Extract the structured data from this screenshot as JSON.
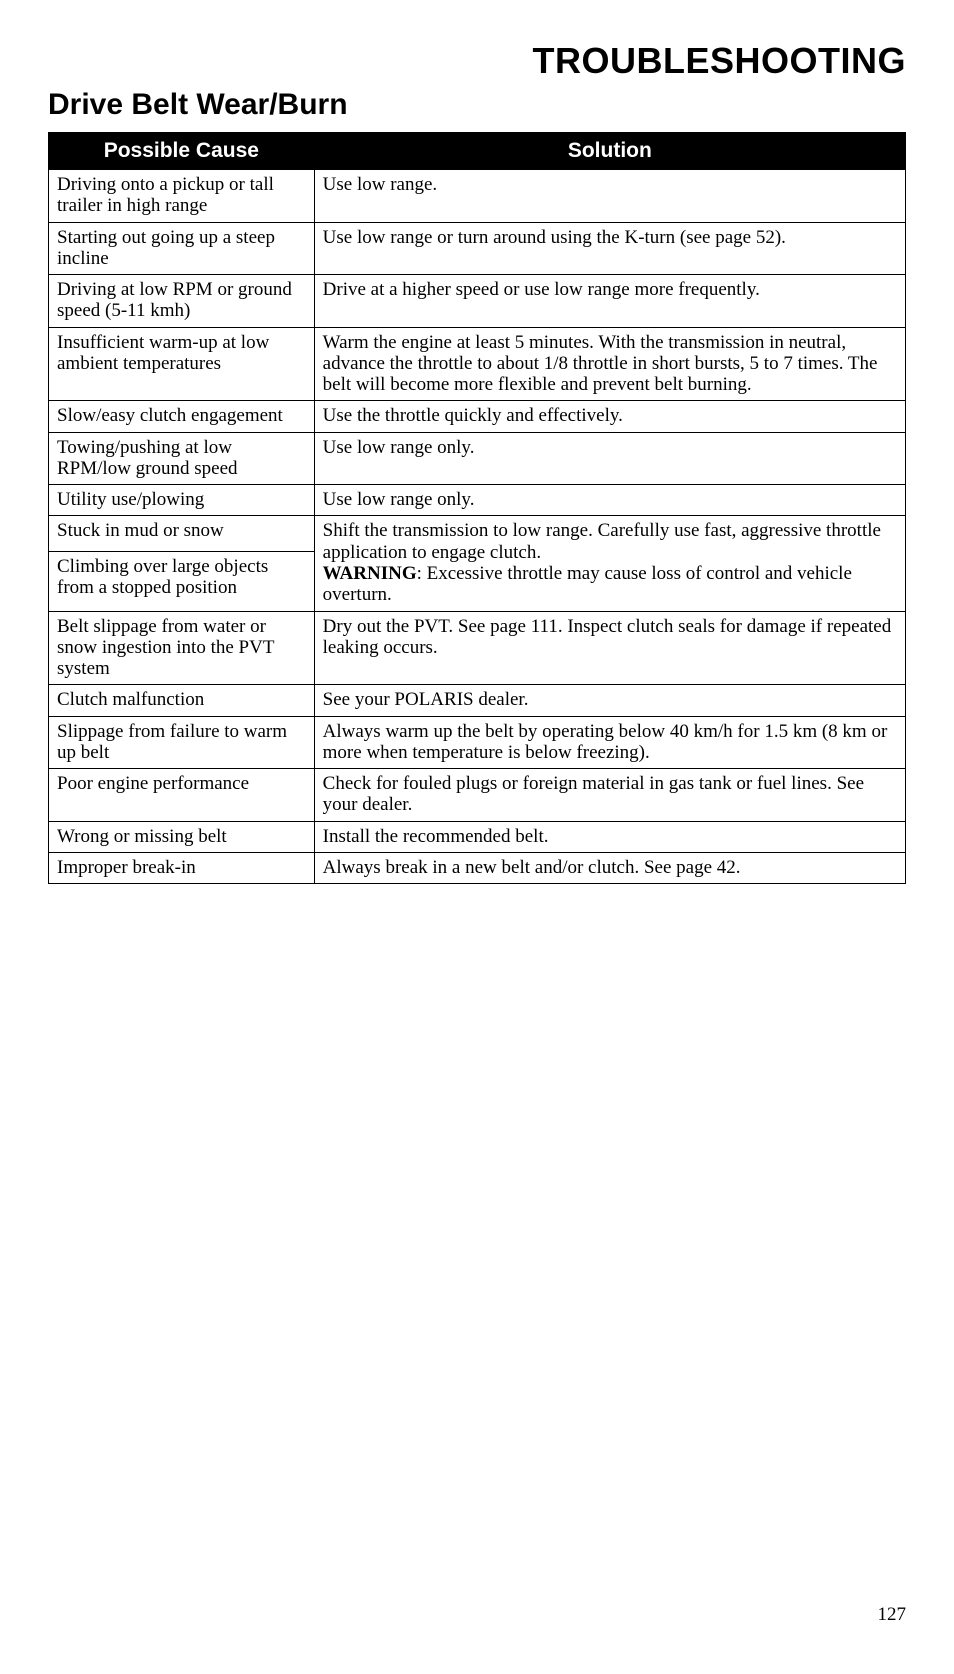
{
  "page": {
    "main_heading": "TROUBLESHOOTING",
    "sub_heading": "Drive Belt Wear/Burn",
    "page_number": "127"
  },
  "table": {
    "headers": {
      "cause": "Possible Cause",
      "solution": "Solution"
    },
    "rows": [
      {
        "cause": "Driving onto a pickup or tall trailer in high range",
        "solution": "Use low range.",
        "rowspan": 1
      },
      {
        "cause": "Starting out going up a steep incline",
        "solution": "Use low range or turn around using the K-turn (see page 52).",
        "rowspan": 1
      },
      {
        "cause": "Driving at low RPM or ground speed (5-11 kmh)",
        "solution": "Drive at a higher speed or use low range more frequently.",
        "rowspan": 1
      },
      {
        "cause": "Insufficient warm-up at low ambient tempera­tures",
        "solution": "Warm the engine at least 5 minutes. With the transmission in neutral, advance the throttle to about 1/8 throttle in short bursts, 5 to 7 times. The belt will become more flex­ible and prevent belt burning.",
        "rowspan": 1
      },
      {
        "cause": "Slow/easy clutch engage­ment",
        "solution": "Use the throttle quickly and effectively.",
        "rowspan": 1
      },
      {
        "cause": "Towing/pushing at low RPM/low ground speed",
        "solution": "Use low range only.",
        "rowspan": 1
      },
      {
        "cause": "Utility use/plowing",
        "solution": "Use low range only.",
        "rowspan": 1
      },
      {
        "cause": "Stuck in mud or snow",
        "solution_pre": "Shift the transmission to low range. Carefully use fast, aggressive throttle application to engage clutch.",
        "solution_warn_label": "WARNING",
        "solution_warn_text": ": Excessive throttle may cause loss of control and vehicle overturn.",
        "rowspan": 2
      },
      {
        "cause": "Climbing over large objects from a stopped position",
        "rowspan": 0
      },
      {
        "cause": "Belt slippage from water or snow ingestion into the PVT system",
        "solution": "Dry out the PVT. See page 111. Inspect clutch seals for damage if repeated leaking occurs.",
        "rowspan": 1
      },
      {
        "cause": "Clutch malfunction",
        "solution": "See your POLARIS dealer.",
        "rowspan": 1
      },
      {
        "cause": "Slippage from failure to warm up belt",
        "solution": "Always warm up the belt by operating below 40 km/h for 1.5 km (8 km or more when temperature is below freez­ing).",
        "rowspan": 1
      },
      {
        "cause": "Poor engine performance",
        "solution": "Check for fouled plugs or foreign material in gas tank or fuel lines. See your dealer.",
        "rowspan": 1
      },
      {
        "cause": "Wrong or missing belt",
        "solution": "Install the recommended belt.",
        "rowspan": 1
      },
      {
        "cause": "Improper break-in",
        "solution": "Always break in a new belt and/or clutch. See page 42.",
        "rowspan": 1
      }
    ]
  }
}
